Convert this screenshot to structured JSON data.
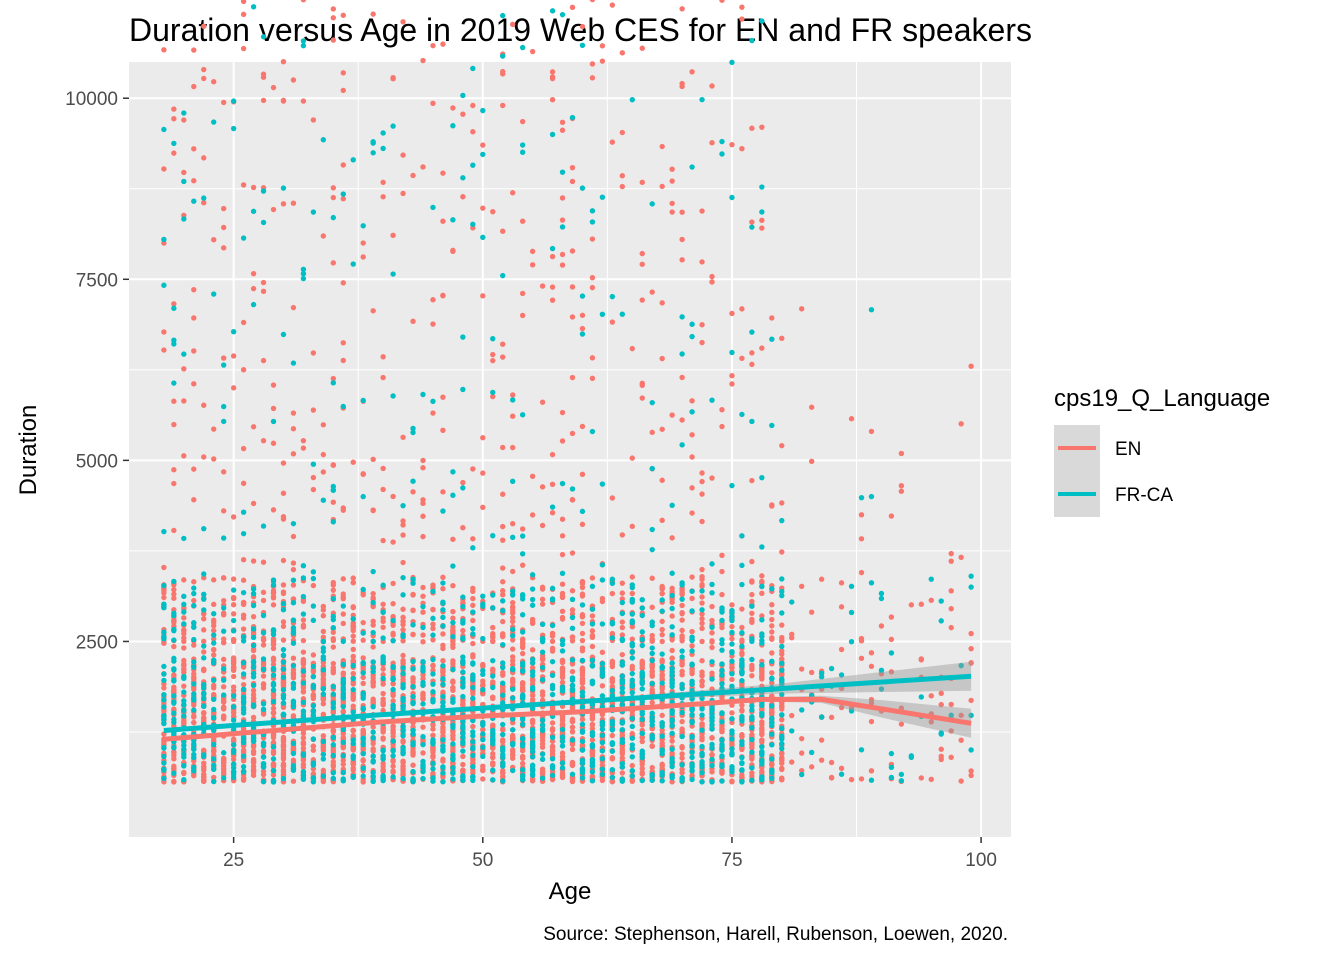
{
  "chart_data": {
    "type": "scatter",
    "title": "Duration versus Age in 2019 Web CES for EN and FR speakers",
    "xlabel": "Age",
    "ylabel": "Duration",
    "caption": "Source: Stephenson, Harell, Rubenson, Loewen, 2020.",
    "xlim": [
      14.5,
      103
    ],
    "ylim": [
      -200,
      10500
    ],
    "x_ticks": [
      25,
      50,
      75,
      100
    ],
    "y_ticks": [
      2500,
      5000,
      7500,
      10000
    ],
    "x_tick_labels": [
      "25",
      "50",
      "75",
      "100"
    ],
    "y_tick_labels": [
      "2500",
      "5000",
      "7500",
      "10000"
    ],
    "grid": true,
    "legend_title": "cps19_Q_Language",
    "legend_position": "right",
    "series": [
      {
        "name": "EN",
        "color": "#F8766D",
        "smooth_x": [
          18,
          30,
          40,
          50,
          60,
          70,
          78,
          84,
          90,
          99
        ],
        "smooth_y": [
          1150,
          1280,
          1390,
          1470,
          1530,
          1620,
          1700,
          1700,
          1570,
          1370
        ],
        "band_halfwidth": [
          30,
          20,
          15,
          15,
          15,
          20,
          30,
          50,
          120,
          200
        ],
        "points_sample": [
          [
            18,
            8000
          ],
          [
            19,
            9850
          ],
          [
            25,
            9950
          ],
          [
            28,
            9970
          ],
          [
            30,
            9960
          ],
          [
            33,
            9700
          ],
          [
            45,
            9930
          ],
          [
            52,
            9900
          ],
          [
            57,
            9980
          ],
          [
            78,
            9600
          ],
          [
            99,
            6300
          ],
          [
            92,
            4650
          ],
          [
            89,
            5400
          ],
          [
            88,
            3450
          ],
          [
            95,
            1500
          ],
          [
            99,
            2400
          ],
          [
            97,
            900
          ],
          [
            99,
            650
          ]
        ]
      },
      {
        "name": "FR-CA",
        "color": "#00BFC4",
        "smooth_x": [
          18,
          40,
          60,
          80,
          99
        ],
        "smooth_y": [
          1270,
          1490,
          1670,
          1850,
          2020
        ],
        "band_halfwidth": [
          25,
          15,
          20,
          70,
          200
        ],
        "points_sample": [
          [
            18,
            8050
          ],
          [
            19,
            7100
          ],
          [
            25,
            9960
          ],
          [
            40,
            9520
          ],
          [
            47,
            9620
          ],
          [
            65,
            9980
          ],
          [
            71,
            9050
          ],
          [
            78,
            8430
          ],
          [
            89,
            7080
          ],
          [
            89,
            4500
          ],
          [
            99,
            3250
          ],
          [
            87,
            2900
          ]
        ]
      }
    ]
  }
}
